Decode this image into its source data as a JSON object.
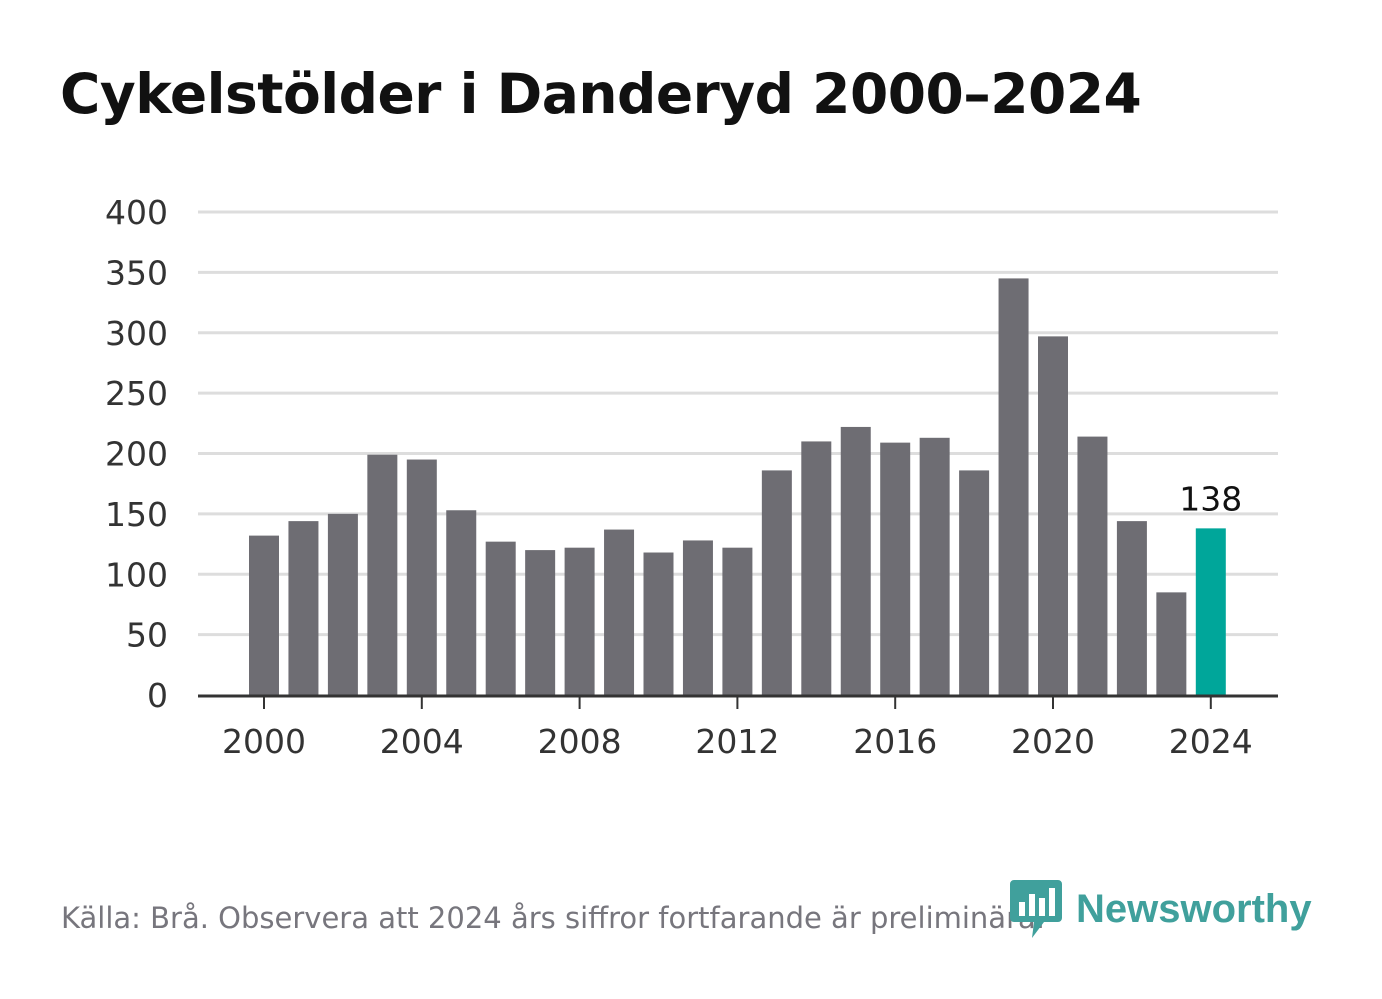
{
  "title": "Cykelstölder i Danderyd 2000–2024",
  "footer": {
    "source": "Källa: Brå. Observera att 2024 års siffror fortfarande är preliminära."
  },
  "brand": {
    "name": "Newsworthy",
    "logo_icon": "bar-chart-pin-icon",
    "color": "#40a09c"
  },
  "colors": {
    "bar": "#6e6d73",
    "highlight": "#00a69a",
    "grid": "#dddddd",
    "axis": "#333333"
  },
  "chart_data": {
    "type": "bar",
    "title": "Cykelstölder i Danderyd 2000–2024",
    "xlabel": "",
    "ylabel": "",
    "categories": [
      "2000",
      "2001",
      "2002",
      "2003",
      "2004",
      "2005",
      "2006",
      "2007",
      "2008",
      "2009",
      "2010",
      "2011",
      "2012",
      "2013",
      "2014",
      "2015",
      "2016",
      "2017",
      "2018",
      "2019",
      "2020",
      "2021",
      "2022",
      "2023",
      "2024"
    ],
    "values": [
      132,
      144,
      150,
      199,
      195,
      153,
      127,
      120,
      122,
      137,
      118,
      128,
      122,
      186,
      210,
      222,
      209,
      213,
      186,
      345,
      297,
      214,
      144,
      85,
      138
    ],
    "highlight_category": "2024",
    "data_labels": [
      {
        "category": "2024",
        "text": "138"
      }
    ],
    "x_tick_labels": [
      "2000",
      "2004",
      "2008",
      "2012",
      "2016",
      "2020",
      "2024"
    ],
    "y_ticks": [
      0,
      50,
      100,
      150,
      200,
      250,
      300,
      350,
      400
    ],
    "ylim": [
      0,
      400
    ],
    "grid": true,
    "legend": "none"
  }
}
